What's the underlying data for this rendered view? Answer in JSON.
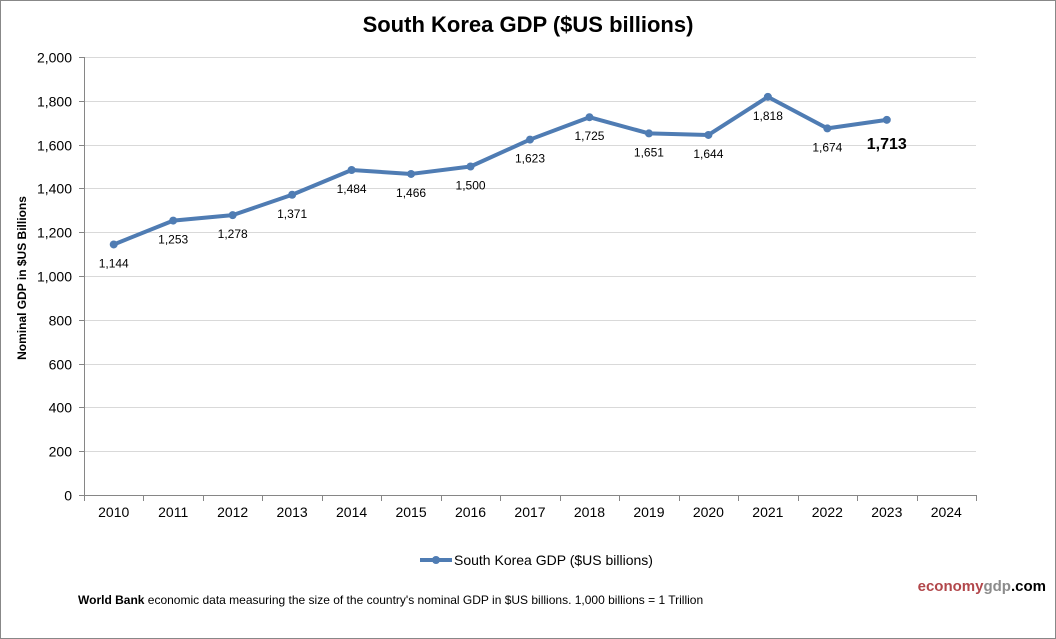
{
  "chart_data": {
    "type": "line",
    "title": "South Korea GDP ($US billions)",
    "xlabel": "",
    "ylabel": "Nominal GDP in $US Billions",
    "categories": [
      "2010",
      "2011",
      "2012",
      "2013",
      "2014",
      "2015",
      "2016",
      "2017",
      "2018",
      "2019",
      "2020",
      "2021",
      "2022",
      "2023",
      "2024"
    ],
    "series": [
      {
        "name": "South Korea GDP ($US billions)",
        "color": "#4f7cb3",
        "values": [
          1144,
          1253,
          1278,
          1371,
          1484,
          1466,
          1500,
          1623,
          1725,
          1651,
          1644,
          1818,
          1674,
          1713,
          null
        ],
        "labels": [
          "1,144",
          "1,253",
          "1,278",
          "1,371",
          "1,484",
          "1,466",
          "1,500",
          "1,623",
          "1,725",
          "1,651",
          "1,644",
          "1,818",
          "1,674",
          "1,713"
        ],
        "highlight_last": true
      }
    ],
    "ylim": [
      0,
      2000
    ],
    "yticks": [
      0,
      200,
      400,
      600,
      800,
      1000,
      1200,
      1400,
      1600,
      1800,
      2000
    ],
    "ytick_labels": [
      "0",
      "200",
      "400",
      "600",
      "800",
      "1,000",
      "1,200",
      "1,400",
      "1,600",
      "1,800",
      "2,000"
    ],
    "grid": true,
    "legend_position": "bottom"
  },
  "footer": {
    "source_bold": "World Bank",
    "source_text": " economic data  measuring the size of the country's nominal GDP in $US billions. 1,000 billions = 1 Trillion"
  },
  "brand": {
    "part1": "economy",
    "part2": "gdp",
    "part3": ".com"
  },
  "colors": {
    "series": "#4f7cb3",
    "grid": "#d9d9d9",
    "axis": "#868686",
    "brand_red": "#b2474b",
    "brand_gray": "#8c8c8c"
  }
}
